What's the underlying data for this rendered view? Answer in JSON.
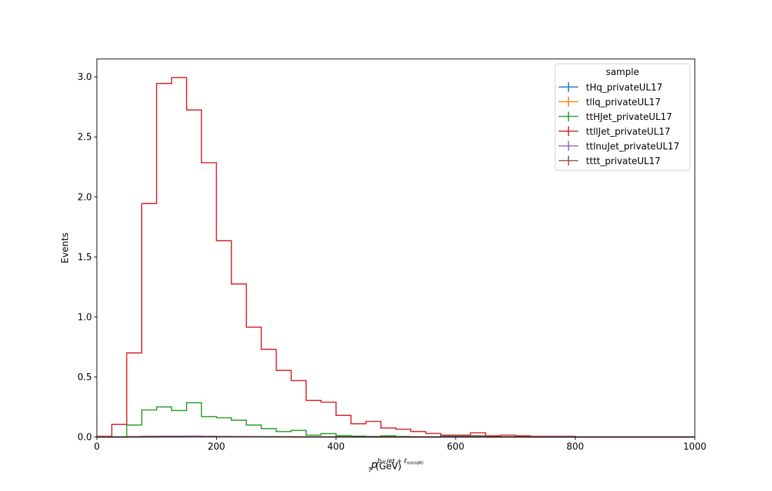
{
  "chart_data": {
    "type": "step-histogram",
    "xlabel": {
      "base": "p",
      "sub": "T",
      "sup": "b−jet + ℓ",
      "sup_sub": "min(dR)",
      "unit": "(GeV)"
    },
    "ylabel": "Events",
    "xlim": [
      0,
      1000
    ],
    "ylim": [
      0,
      3.15
    ],
    "xticks": [
      "0",
      "200",
      "400",
      "600",
      "800",
      "1000"
    ],
    "yticks": [
      "0.0",
      "0.5",
      "1.0",
      "1.5",
      "2.0",
      "2.5",
      "3.0"
    ],
    "xtick_values": [
      0,
      200,
      400,
      600,
      800,
      1000
    ],
    "ytick_values": [
      0,
      0.5,
      1.0,
      1.5,
      2.0,
      2.5,
      3.0
    ],
    "legend": {
      "title": "sample",
      "position": "top-right"
    },
    "bin_edges": [
      0,
      25,
      50,
      75,
      100,
      125,
      150,
      175,
      200,
      225,
      250,
      275,
      300,
      325,
      350,
      375,
      400,
      425,
      450,
      475,
      500,
      525,
      550,
      575,
      600,
      625,
      650,
      675,
      700,
      725,
      750,
      775,
      800,
      825,
      850,
      875,
      900,
      925,
      950,
      975,
      1000
    ],
    "series": [
      {
        "name": "tHq_privateUL17",
        "color": "#1f77b4",
        "values": [
          0,
          0,
          0.001,
          0.002,
          0.003,
          0.003,
          0.003,
          0.003,
          0.002,
          0.002,
          0.002,
          0.001,
          0.001,
          0.001,
          0.001,
          0.001,
          0.001,
          0.0005,
          0.0005,
          0.0005,
          0.0003,
          0.0003,
          0.0002,
          0.0002,
          0.0001,
          0.0001,
          0.0001,
          0.0001,
          0,
          0,
          0,
          0,
          0,
          0,
          0,
          0,
          0,
          0,
          0,
          0
        ]
      },
      {
        "name": "tllq_privateUL17",
        "color": "#ff7f0e",
        "values": [
          0,
          0.002,
          0.004,
          0.006,
          0.007,
          0.007,
          0.006,
          0.005,
          0.004,
          0.003,
          0.003,
          0.002,
          0.002,
          0.001,
          0.001,
          0.001,
          0.001,
          0.0005,
          0.0005,
          0.0005,
          0.0003,
          0.0003,
          0.0002,
          0.0002,
          0.0001,
          0.0001,
          0.0001,
          0.0001,
          0,
          0,
          0,
          0,
          0,
          0,
          0,
          0,
          0,
          0,
          0,
          0
        ]
      },
      {
        "name": "ttHJet_privateUL17",
        "color": "#2ca02c",
        "values": [
          0,
          0,
          0.1,
          0.225,
          0.25,
          0.22,
          0.285,
          0.17,
          0.16,
          0.14,
          0.1,
          0.07,
          0.045,
          0.055,
          0.015,
          0.028,
          0.012,
          0.007,
          0.004,
          0.01,
          0.004,
          0,
          0,
          0,
          0,
          0,
          0,
          0,
          0,
          0,
          0,
          0,
          0,
          0,
          0,
          0,
          0,
          0,
          0,
          0
        ]
      },
      {
        "name": "ttllJet_privateUL17",
        "color": "#d62728",
        "values": [
          0.005,
          0.105,
          0.7,
          1.945,
          2.945,
          2.995,
          2.725,
          2.285,
          1.635,
          1.275,
          0.915,
          0.73,
          0.555,
          0.47,
          0.305,
          0.29,
          0.18,
          0.11,
          0.13,
          0.075,
          0.065,
          0.045,
          0.03,
          0.015,
          0.015,
          0.035,
          0.01,
          0.015,
          0.01,
          0.005,
          0.005,
          0.005,
          0,
          0,
          0,
          0,
          0,
          0,
          0,
          0
        ]
      },
      {
        "name": "ttlnuJet_privateUL17",
        "color": "#9467bd",
        "values": [
          0,
          0.001,
          0.003,
          0.005,
          0.006,
          0.006,
          0.008,
          0.006,
          0.005,
          0.004,
          0.003,
          0.003,
          0.002,
          0.002,
          0.001,
          0.001,
          0.001,
          0.0005,
          0.0005,
          0.0005,
          0.0003,
          0.0003,
          0.0002,
          0.0002,
          0.0001,
          0.0001,
          0.0001,
          0.0001,
          0,
          0,
          0,
          0,
          0,
          0,
          0,
          0,
          0,
          0,
          0,
          0
        ]
      },
      {
        "name": "tttt_privateUL17",
        "color": "#8c564b",
        "values": [
          0,
          0,
          0,
          0,
          0.001,
          0.001,
          0.002,
          0.002,
          0.002,
          0.002,
          0.002,
          0.002,
          0.002,
          0.001,
          0.001,
          0.001,
          0.001,
          0.001,
          0.001,
          0.001,
          0.001,
          0.001,
          0.001,
          0.01,
          0.01,
          0.01,
          0.001,
          0.001,
          0,
          0,
          0,
          0,
          0,
          0,
          0,
          0,
          0,
          0,
          0,
          0
        ]
      }
    ]
  }
}
